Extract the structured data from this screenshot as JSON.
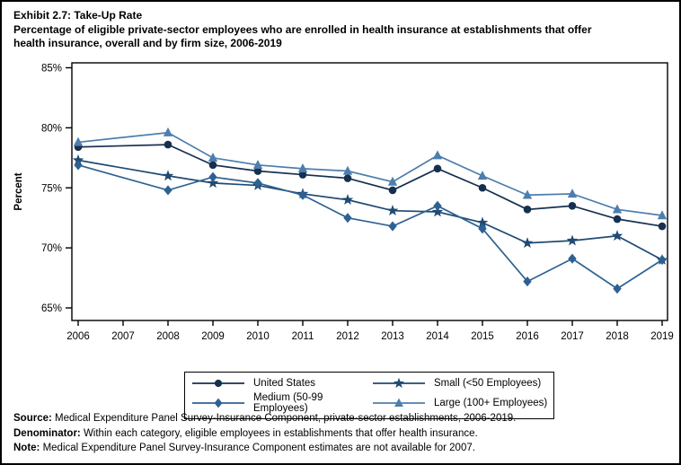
{
  "page": {
    "title": "Exhibit 2.7: Take-Up Rate",
    "subtitle_line1": "Percentage of eligible private-sector employees who are enrolled in health insurance at establishments that offer",
    "subtitle_line2": "health insurance, overall and by firm size, 2006-2019"
  },
  "chart_data": {
    "type": "line",
    "title": "Exhibit 2.7: Take-Up Rate",
    "xlabel": "",
    "ylabel": "Percent",
    "ylim": [
      64,
      85.5
    ],
    "yticks": [
      65,
      70,
      75,
      80,
      85
    ],
    "ytick_labels": [
      "65%",
      "70%",
      "75%",
      "80%",
      "85%"
    ],
    "x": [
      2006,
      2007,
      2008,
      2009,
      2010,
      2011,
      2012,
      2013,
      2014,
      2015,
      2016,
      2017,
      2018,
      2019
    ],
    "grid": false,
    "legend_position": "bottom",
    "missing_data_note": "no estimates for 2007; lines connect 2006 directly to 2008",
    "series": [
      {
        "name": "United States",
        "marker": "circle",
        "color": "#16304f",
        "values": [
          78.4,
          null,
          78.6,
          76.9,
          76.4,
          76.1,
          75.8,
          74.8,
          76.6,
          75.0,
          73.2,
          73.5,
          72.4,
          71.8
        ]
      },
      {
        "name": "Small (<50 Employees)",
        "marker": "star",
        "color": "#1f4a73",
        "values": [
          77.3,
          null,
          76.0,
          75.4,
          75.2,
          74.5,
          74.0,
          73.1,
          73.0,
          72.1,
          70.4,
          70.6,
          71.0,
          69.0
        ]
      },
      {
        "name": "Medium (50-99 Employees)",
        "marker": "diamond",
        "color": "#2e6191",
        "values": [
          76.9,
          null,
          74.8,
          75.9,
          75.4,
          74.4,
          72.5,
          71.8,
          73.5,
          71.6,
          67.2,
          69.1,
          66.6,
          69.0
        ]
      },
      {
        "name": "Large (100+ Employees)",
        "marker": "triangle",
        "color": "#4d7eae",
        "values": [
          78.8,
          null,
          79.6,
          77.5,
          76.9,
          76.6,
          76.4,
          75.5,
          77.7,
          76.0,
          74.4,
          74.5,
          73.2,
          72.7
        ]
      }
    ]
  },
  "legend": {
    "items": [
      {
        "label": "United States",
        "marker": "circle",
        "color": "#16304f",
        "series_index": 0
      },
      {
        "label": "Small (<50 Employees)",
        "marker": "star",
        "color": "#1f4a73",
        "series_index": 1
      },
      {
        "label": "Medium (50-99 Employees)",
        "marker": "diamond",
        "color": "#2e6191",
        "series_index": 2
      },
      {
        "label": "Large (100+ Employees)",
        "marker": "triangle",
        "color": "#4d7eae",
        "series_index": 3
      }
    ]
  },
  "footnotes": [
    {
      "label": "Source:",
      "text": " Medical Expenditure Panel Survey-Insurance Component, private-sector establishments, 2006-2019."
    },
    {
      "label": "Denominator:",
      "text": " Within each category, eligible employees in establishments that offer health insurance."
    },
    {
      "label": "Note:",
      "text": " Medical Expenditure Panel Survey-Insurance Component estimates are not available for 2007."
    }
  ]
}
